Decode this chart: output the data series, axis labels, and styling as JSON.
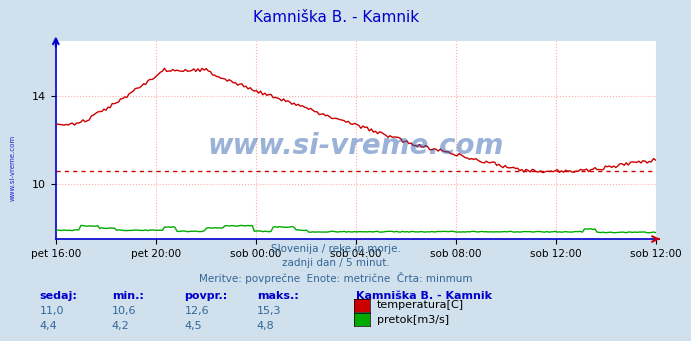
{
  "title": "Kamniška B. - Kamnik",
  "title_color": "#0000cc",
  "bg_color": "#d0e0ec",
  "plot_bg_color": "#ffffff",
  "grid_color": "#ffaaaa",
  "axis_color": "#0000cc",
  "x_labels": [
    "pet 16:00",
    "pet 20:00",
    "sob 00:00",
    "sob 04:00",
    "sob 08:00",
    "sob 12:00"
  ],
  "temp_color": "#cc0000",
  "flow_color": "#00aa00",
  "avg_temp": 10.6,
  "watermark_text": "www.si-vreme.com",
  "watermark_color": "#2255aa",
  "info_line1": "Slovenija / reke in morje.",
  "info_line2": "zadnji dan / 5 minut.",
  "info_line3": "Meritve: povprečne  Enote: metrične  Črta: minmum",
  "footer_color": "#336699",
  "legend_title": "Kamniška B. - Kamnik",
  "stat_labels": [
    "sedaj:",
    "min.:",
    "povpr.:",
    "maks.:"
  ],
  "stat_temp": [
    11.0,
    10.6,
    12.6,
    15.3
  ],
  "stat_flow": [
    4.4,
    4.2,
    4.5,
    4.8
  ],
  "left_label": "www.si-vreme.com",
  "n_points": 288,
  "ylim": [
    7.5,
    16.5
  ],
  "yticks": [
    10,
    14
  ],
  "yticklabels": [
    "10",
    "14"
  ]
}
